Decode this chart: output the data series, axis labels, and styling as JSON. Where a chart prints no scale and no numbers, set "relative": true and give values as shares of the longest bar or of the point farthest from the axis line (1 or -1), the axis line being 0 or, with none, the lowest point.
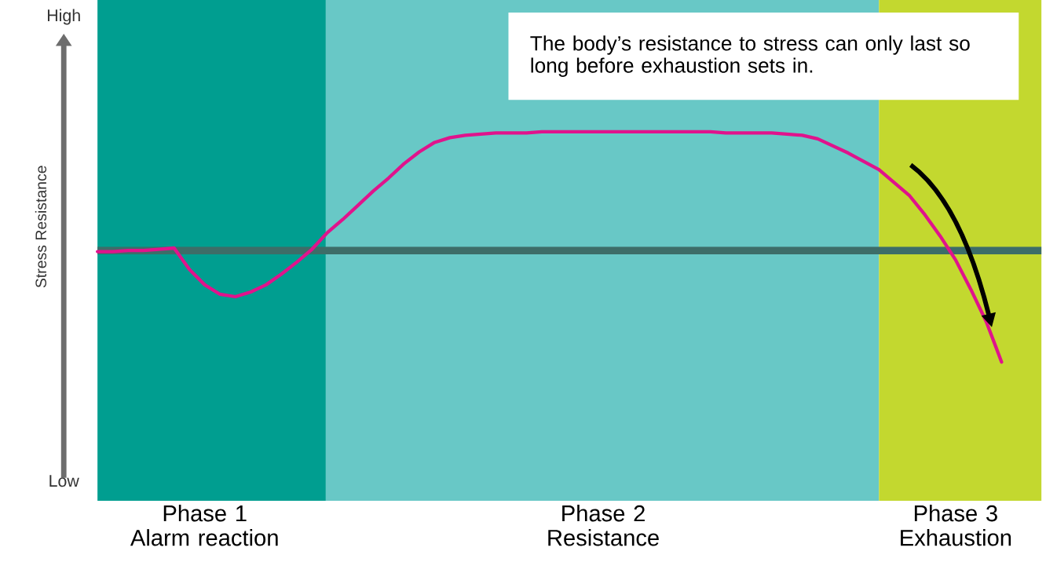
{
  "chart_data": {
    "type": "line",
    "relative": true,
    "ylabel": "Stress Resistance",
    "categories": [
      null,
      null,
      null,
      null,
      null,
      null,
      null,
      "Phase 1 Alarm reaction",
      null,
      null,
      null,
      null,
      null,
      null,
      null,
      null,
      null,
      null,
      null,
      null,
      null,
      null,
      null,
      null,
      null,
      null,
      null,
      null,
      null,
      null,
      null,
      null,
      null,
      "Phase 2 Resistance",
      null,
      null,
      null,
      null,
      null,
      null,
      null,
      null,
      null,
      null,
      null,
      null,
      null,
      null,
      null,
      null,
      null,
      null,
      null,
      null,
      null,
      null,
      "Phase 3 Exhaustion",
      null,
      null,
      null
    ],
    "series": [
      {
        "color": "#e0138c",
        "values": [
          -0.01,
          -0.01,
          0.0,
          0.0,
          0.01,
          0.02,
          -0.16,
          -0.29,
          -0.37,
          -0.39,
          -0.35,
          -0.29,
          -0.2,
          -0.1,
          0.01,
          0.15,
          0.26,
          0.38,
          0.5,
          0.61,
          0.73,
          0.83,
          0.91,
          0.95,
          0.97,
          0.98,
          0.99,
          0.99,
          0.99,
          1.0,
          1.0,
          1.0,
          1.0,
          1.0,
          1.0,
          1.0,
          1.0,
          1.0,
          1.0,
          1.0,
          1.0,
          0.99,
          0.99,
          0.99,
          0.99,
          0.98,
          0.97,
          0.94,
          0.88,
          0.82,
          0.75,
          0.68,
          0.57,
          0.46,
          0.3,
          0.12,
          -0.08,
          -0.33,
          -0.6,
          -0.94
        ]
      }
    ],
    "annotations": [
      "The body’s resistance to stress can only last so long before exhaustion sets in.",
      "High",
      "Low"
    ],
    "ref_lines": [
      {
        "axis": "y",
        "value": 0,
        "color": "#3d6d68"
      }
    ],
    "line_style": "solid",
    "marker": "none"
  }
}
